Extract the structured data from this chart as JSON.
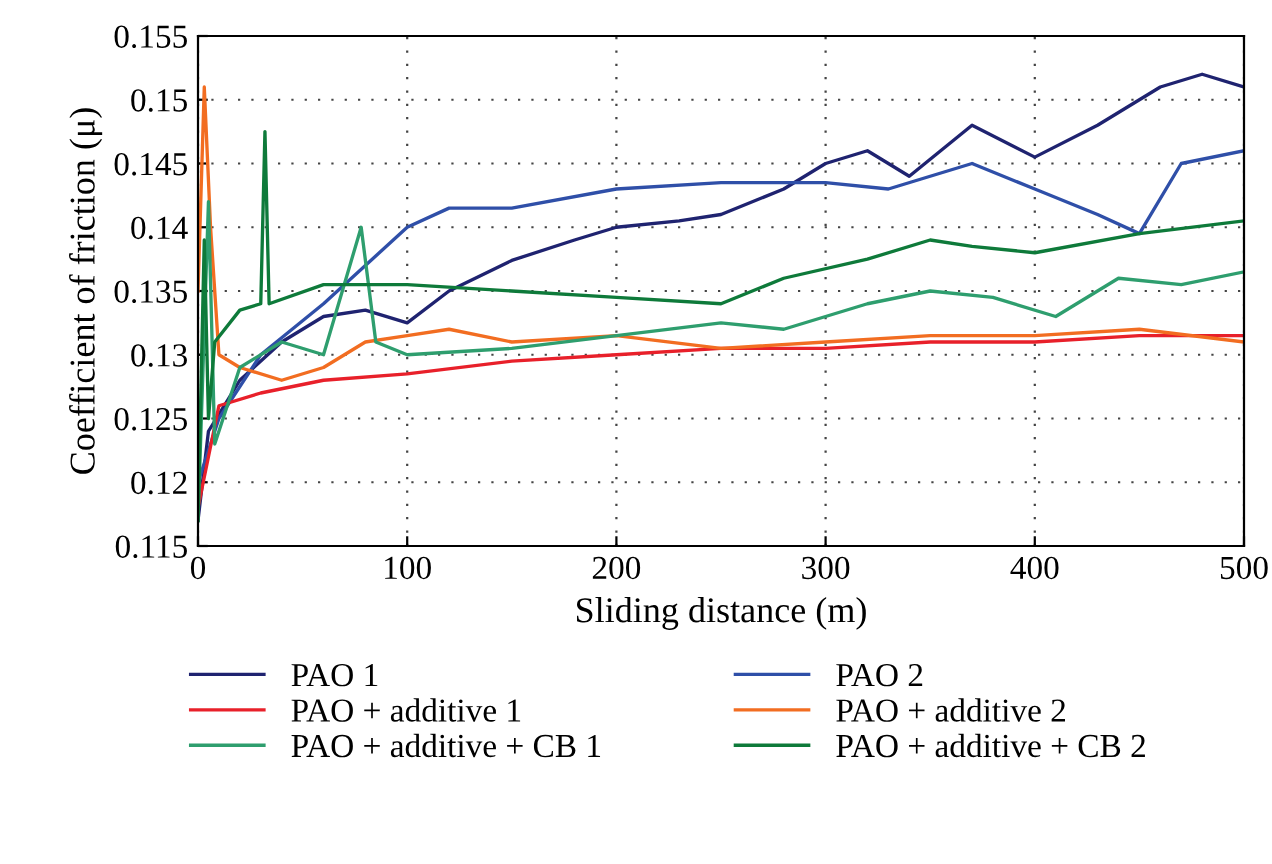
{
  "chart_data": {
    "type": "line",
    "xlabel": "Sliding distance (m)",
    "ylabel": "Coefficient of friction (μ)",
    "xlim": [
      0,
      500
    ],
    "xticks": [
      0,
      100,
      200,
      300,
      400,
      500
    ],
    "ylim": [
      0.115,
      0.155
    ],
    "yticks": [
      0.115,
      0.12,
      0.125,
      0.13,
      0.135,
      0.14,
      0.145,
      0.15,
      0.155
    ],
    "grid": true,
    "legend": "bottom",
    "series": [
      {
        "name": "PAO 1",
        "color": "#1f2370",
        "x": [
          0,
          5,
          20,
          40,
          60,
          80,
          100,
          120,
          150,
          180,
          200,
          230,
          250,
          280,
          300,
          320,
          340,
          370,
          400,
          430,
          460,
          480,
          500
        ],
        "values": [
          0.117,
          0.124,
          0.128,
          0.131,
          0.133,
          0.1335,
          0.1325,
          0.135,
          0.1374,
          0.139,
          0.14,
          0.1405,
          0.141,
          0.143,
          0.145,
          0.146,
          0.144,
          0.148,
          0.1455,
          0.148,
          0.151,
          0.152,
          0.151
        ]
      },
      {
        "name": "PAO 2",
        "color": "#2f4fa8",
        "x": [
          0,
          10,
          30,
          60,
          80,
          100,
          120,
          150,
          200,
          250,
          300,
          330,
          370,
          400,
          430,
          450,
          470,
          500
        ],
        "values": [
          0.12,
          0.125,
          0.13,
          0.134,
          0.137,
          0.14,
          0.1415,
          0.1415,
          0.143,
          0.1435,
          0.1435,
          0.143,
          0.145,
          0.143,
          0.141,
          0.1395,
          0.145,
          0.146
        ]
      },
      {
        "name": "PAO + additive 1",
        "color": "#e8202a",
        "x": [
          0,
          5,
          10,
          30,
          60,
          100,
          150,
          200,
          250,
          300,
          350,
          400,
          450,
          500
        ],
        "values": [
          0.118,
          0.122,
          0.126,
          0.127,
          0.128,
          0.1285,
          0.1295,
          0.13,
          0.1305,
          0.1305,
          0.131,
          0.131,
          0.1315,
          0.1315
        ]
      },
      {
        "name": "PAO + additive 2",
        "color": "#f26d21",
        "x": [
          0,
          3,
          6,
          10,
          20,
          40,
          60,
          80,
          100,
          120,
          150,
          200,
          250,
          300,
          350,
          400,
          450,
          500
        ],
        "values": [
          0.135,
          0.151,
          0.14,
          0.13,
          0.129,
          0.128,
          0.129,
          0.131,
          0.1315,
          0.132,
          0.131,
          0.1315,
          0.1305,
          0.131,
          0.1315,
          0.1315,
          0.132,
          0.131
        ]
      },
      {
        "name": "PAO + additive + CB 1",
        "color": "#2e9e6e",
        "x": [
          0,
          5,
          8,
          20,
          40,
          60,
          78,
          85,
          100,
          150,
          200,
          250,
          280,
          320,
          350,
          380,
          410,
          440,
          470,
          500
        ],
        "values": [
          0.117,
          0.142,
          0.123,
          0.129,
          0.131,
          0.13,
          0.14,
          0.131,
          0.13,
          0.1305,
          0.1315,
          0.1325,
          0.132,
          0.134,
          0.135,
          0.1345,
          0.133,
          0.136,
          0.1355,
          0.1365
        ]
      },
      {
        "name": "PAO + additive + CB 2",
        "color": "#0e7a3a",
        "x": [
          0,
          3,
          5,
          8,
          20,
          30,
          32,
          34,
          60,
          100,
          150,
          200,
          250,
          280,
          320,
          350,
          370,
          400,
          450,
          500
        ],
        "values": [
          0.117,
          0.139,
          0.125,
          0.131,
          0.1335,
          0.134,
          0.1475,
          0.134,
          0.1355,
          0.1355,
          0.135,
          0.1345,
          0.134,
          0.136,
          0.1375,
          0.139,
          0.1385,
          0.138,
          0.1395,
          0.1405
        ]
      }
    ]
  }
}
